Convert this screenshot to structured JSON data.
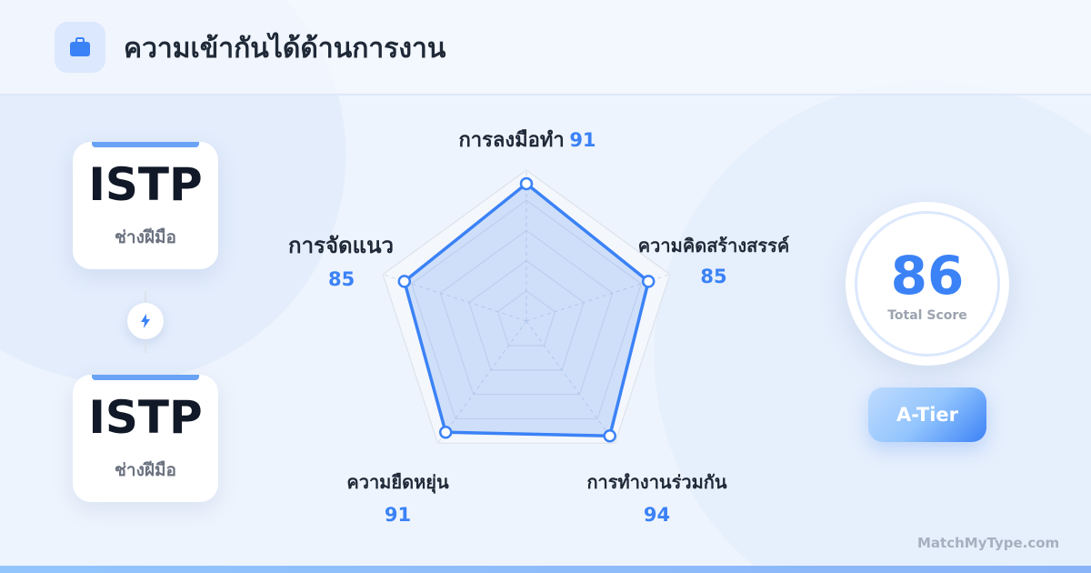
{
  "header": {
    "title": "ความเข้ากันได้ด้านการงาน",
    "icon": "briefcase-icon"
  },
  "types": [
    {
      "code": "ISTP",
      "name": "ช่างฝีมือ"
    },
    {
      "code": "ISTP",
      "name": "ช่างฝีมือ"
    }
  ],
  "connector_icon": "lightning-icon",
  "chart_data": {
    "type": "radar",
    "categories": [
      "การลงมือทำ",
      "ความคิดสร้างสรรค์",
      "การทำงานร่วมกัน",
      "ความยืดหยุ่น",
      "การจัดแนว"
    ],
    "values": [
      91,
      85,
      94,
      91,
      85
    ],
    "range": [
      0,
      100
    ],
    "grid_levels": [
      20,
      40,
      60,
      80,
      100
    ],
    "color": "#3b82f6"
  },
  "score": {
    "value": "86",
    "label": "Total Score"
  },
  "tier": "A-Tier",
  "brand": "MatchMyType.com",
  "colors": {
    "accent": "#3b82f6",
    "text": "#1f2937",
    "muted": "#6b7280"
  }
}
